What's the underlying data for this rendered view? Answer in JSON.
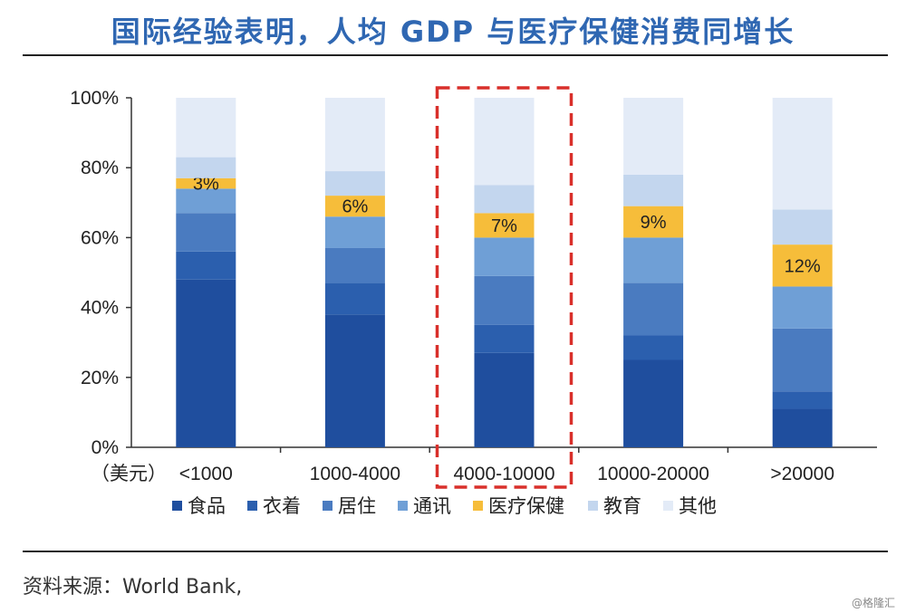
{
  "title": "国际经验表明，人均 GDP 与医疗保健消费同增长",
  "source": "资料来源：World Bank,",
  "watermark": "@格隆汇",
  "colors": {
    "title": "#2f67b2",
    "highlight_box": "#d9302b"
  },
  "chart_data": {
    "type": "bar",
    "stacked": true,
    "xlabel": "（美元）",
    "ylabel": "",
    "ylim": [
      0,
      100
    ],
    "yticks": [
      "0%",
      "20%",
      "40%",
      "60%",
      "80%",
      "100%"
    ],
    "categories": [
      "<1000",
      "1000-4000",
      "4000-10000",
      "10000-20000",
      ">20000"
    ],
    "highlight_category": "4000-10000",
    "series": [
      {
        "name": "食品",
        "color": "#1f4e9e",
        "values": [
          48,
          38,
          27,
          25,
          11
        ]
      },
      {
        "name": "衣着",
        "color": "#2b5fae",
        "values": [
          8,
          9,
          8,
          7,
          5
        ]
      },
      {
        "name": "居住",
        "color": "#4a7bc0",
        "values": [
          11,
          10,
          14,
          15,
          18
        ]
      },
      {
        "name": "通讯",
        "color": "#6f9fd6",
        "values": [
          7,
          9,
          11,
          13,
          12
        ]
      },
      {
        "name": "医疗保健",
        "color": "#f6bd3a",
        "values": [
          3,
          6,
          7,
          9,
          12
        ]
      },
      {
        "name": "教育",
        "color": "#c3d6ee",
        "values": [
          6,
          7,
          8,
          9,
          10
        ]
      },
      {
        "name": "其他",
        "color": "#e3ebf7",
        "values": [
          17,
          21,
          25,
          22,
          32
        ]
      }
    ],
    "data_labels": {
      "series": "医疗保健",
      "labels": [
        "3%",
        "6%",
        "7%",
        "9%",
        "12%"
      ]
    }
  }
}
